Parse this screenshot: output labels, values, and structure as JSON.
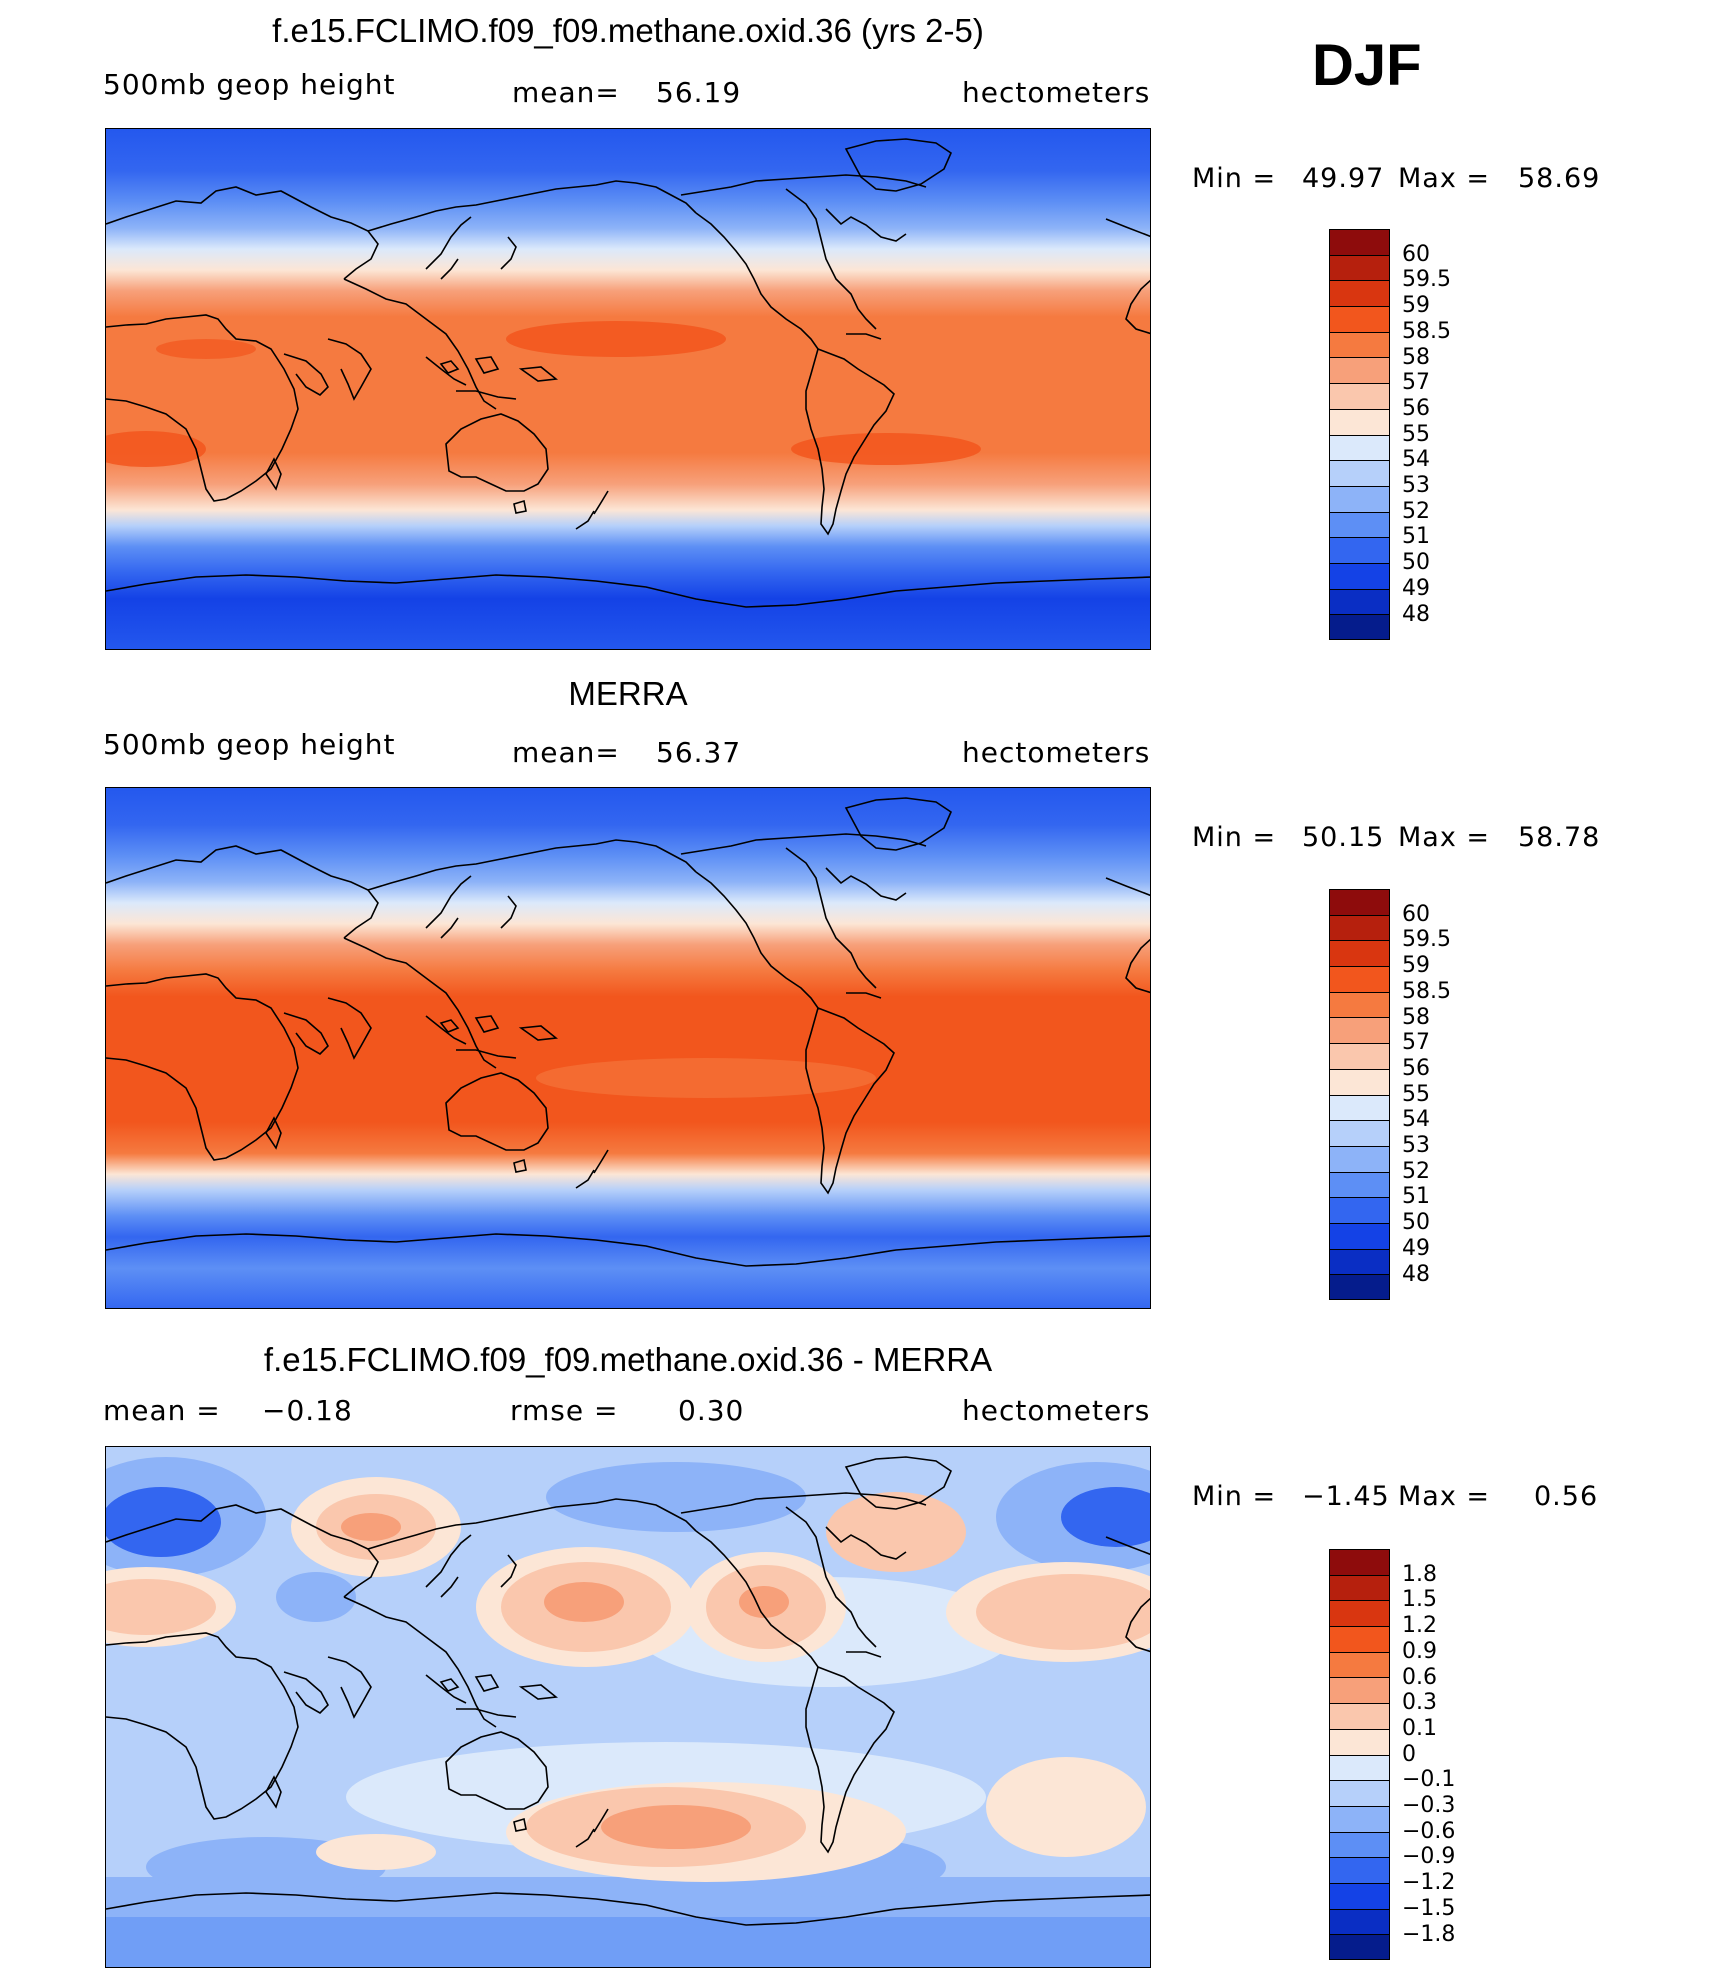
{
  "season": "DJF",
  "panels": [
    {
      "title": "f.e15.FCLIMO.f09_f09.methane.oxid.36 (yrs 2-5)",
      "left_label": "500mb  geop  height",
      "mean_label": "mean=",
      "mean_value": "56.19",
      "units": "hectometers",
      "min_label": "Min  =",
      "min_value": "49.97",
      "max_label": "Max  =",
      "max_value": "58.69"
    },
    {
      "title": "MERRA",
      "left_label": "500mb  geop  height",
      "mean_label": "mean=",
      "mean_value": "56.37",
      "units": "hectometers",
      "min_label": "Min  =",
      "min_value": "50.15",
      "max_label": "Max  =",
      "max_value": "58.78"
    },
    {
      "title": "f.e15.FCLIMO.f09_f09.methane.oxid.36 - MERRA",
      "left_label": "mean  =",
      "left_value": "−0.18",
      "mean_label": "rmse  =",
      "mean_value": "0.30",
      "units": "hectometers",
      "min_label": "Min  =",
      "min_value": "−1.45",
      "max_label": "Max  =",
      "max_value": "0.56"
    }
  ],
  "colorbars": {
    "field": {
      "labels": [
        "60",
        "59.5",
        "59",
        "58.5",
        "58",
        "57",
        "56",
        "55",
        "54",
        "53",
        "52",
        "51",
        "50",
        "49",
        "48"
      ],
      "colors": [
        "#8e0c0c",
        "#b6200d",
        "#d93610",
        "#f2561d",
        "#f57a40",
        "#f7a07a",
        "#fac7ad",
        "#fce6d6",
        "#dbe9fb",
        "#b6d0fa",
        "#8db3f8",
        "#5d8ff5",
        "#3366f0",
        "#1442e6",
        "#0a2ec4",
        "#051c8c"
      ]
    },
    "diff": {
      "labels": [
        "1.8",
        "1.5",
        "1.2",
        "0.9",
        "0.6",
        "0.3",
        "0.1",
        "0",
        "−0.1",
        "−0.3",
        "−0.6",
        "−0.9",
        "−1.2",
        "−1.5",
        "−1.8"
      ],
      "colors": [
        "#8e0c0c",
        "#b6200d",
        "#d93610",
        "#f2561d",
        "#f57a40",
        "#f7a07a",
        "#fac7ad",
        "#fce6d6",
        "#dbe9fb",
        "#b6d0fa",
        "#8db3f8",
        "#5d8ff5",
        "#3366f0",
        "#1442e6",
        "#0a2ec4",
        "#051c8c"
      ]
    }
  }
}
